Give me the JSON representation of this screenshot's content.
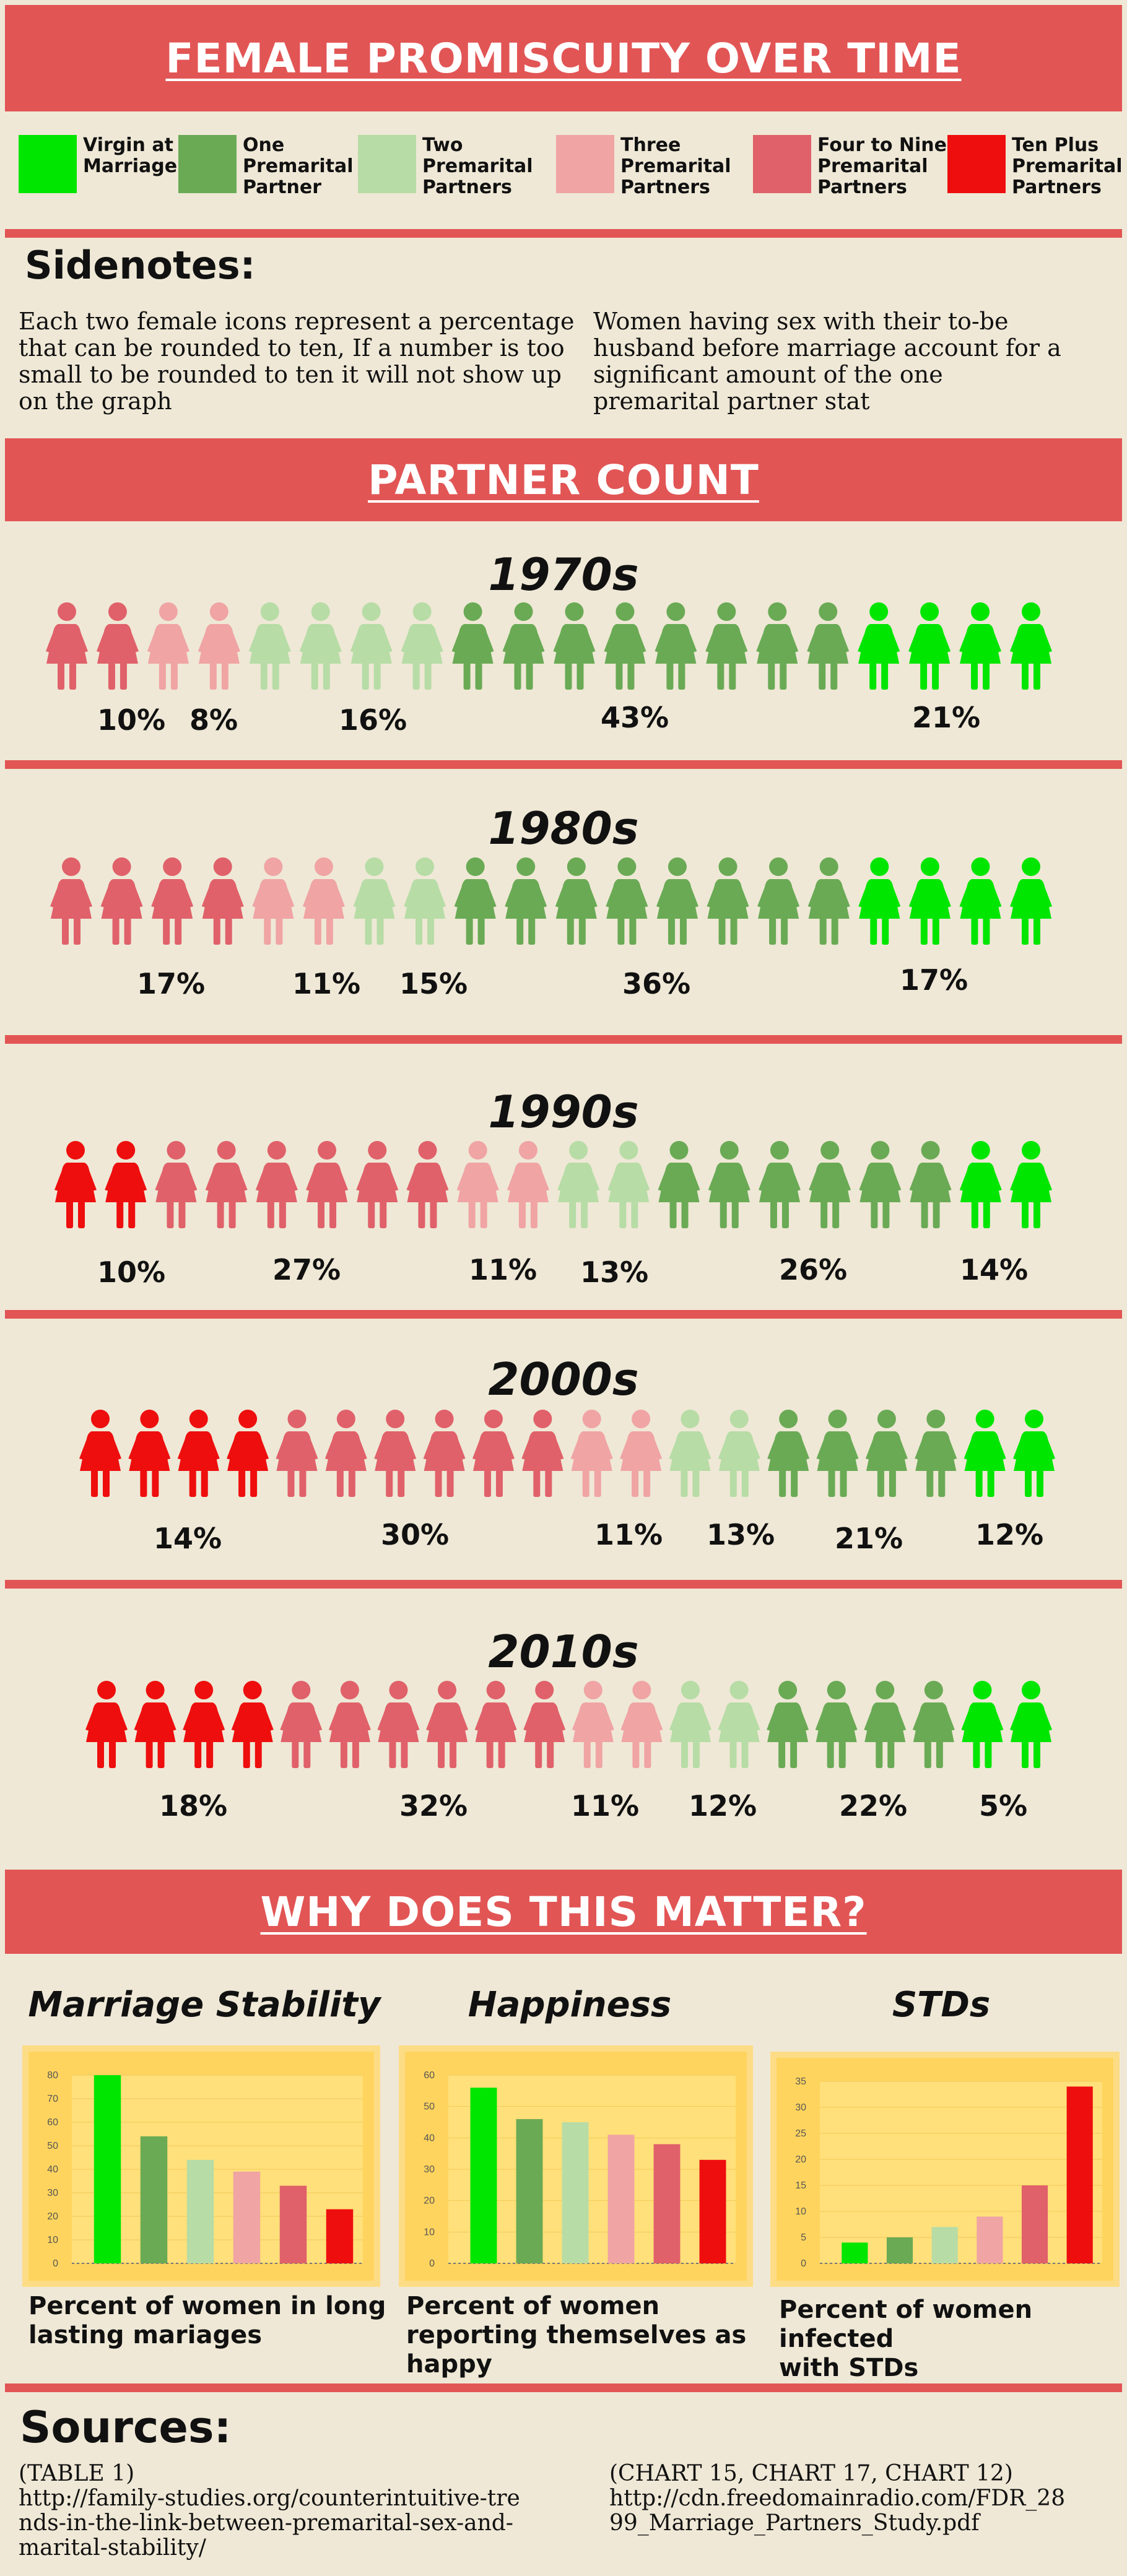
{
  "title": "FEMALE PROMISCUITY OVER TIME",
  "colors": {
    "virgin": "#00e600",
    "one": "#6aaa55",
    "two": "#b7dca6",
    "three": "#f0a4a4",
    "four_nine": "#e0616a",
    "ten_plus": "#ee0e0e",
    "banner": "#e25555",
    "background": "#efe8d6",
    "chart_box": "#ffd45e"
  },
  "legend": [
    {
      "key": "virgin",
      "label": "Virgin at\nMarriage"
    },
    {
      "key": "one",
      "label": "One\nPremarital\nPartner"
    },
    {
      "key": "two",
      "label": "Two\nPremarital\nPartners"
    },
    {
      "key": "three",
      "label": "Three\nPremarital\nPartners"
    },
    {
      "key": "four_nine",
      "label": "Four to Nine\nPremarital\nPartners"
    },
    {
      "key": "ten_plus",
      "label": "Ten Plus\nPremarital\nPartners"
    }
  ],
  "sidenotes": {
    "title": "Sidenotes:",
    "left": "Each two female icons represent a percentage that can be rounded to ten, If a number is too small to be rounded to ten it will not show up on the graph",
    "right": "Women having sex with their to-be husband before marriage account for a significant amount of the one premarital partner stat"
  },
  "partner_count_title": "PARTNER COUNT",
  "why_title": "WHY DOES THIS MATTER?",
  "decades": [
    {
      "label": "1970s",
      "icons": [
        "four_nine",
        "four_nine",
        "three",
        "three",
        "two",
        "two",
        "two",
        "two",
        "one",
        "one",
        "one",
        "one",
        "one",
        "one",
        "one",
        "one",
        "virgin",
        "virgin",
        "virgin",
        "virgin"
      ],
      "percents": [
        "10%",
        "8%",
        "16%",
        "43%",
        "21%"
      ]
    },
    {
      "label": "1980s",
      "icons": [
        "four_nine",
        "four_nine",
        "four_nine",
        "four_nine",
        "three",
        "three",
        "two",
        "two",
        "one",
        "one",
        "one",
        "one",
        "one",
        "one",
        "one",
        "one",
        "virgin",
        "virgin",
        "virgin",
        "virgin"
      ],
      "percents": [
        "17%",
        "11%",
        "15%",
        "36%",
        "17%"
      ]
    },
    {
      "label": "1990s",
      "icons": [
        "ten_plus",
        "ten_plus",
        "four_nine",
        "four_nine",
        "four_nine",
        "four_nine",
        "four_nine",
        "four_nine",
        "three",
        "three",
        "two",
        "two",
        "one",
        "one",
        "one",
        "one",
        "one",
        "one",
        "virgin",
        "virgin"
      ],
      "percents": [
        "10%",
        "27%",
        "11%",
        "13%",
        "26%",
        "14%"
      ]
    },
    {
      "label": "2000s",
      "icons": [
        "ten_plus",
        "ten_plus",
        "ten_plus",
        "ten_plus",
        "four_nine",
        "four_nine",
        "four_nine",
        "four_nine",
        "four_nine",
        "four_nine",
        "three",
        "three",
        "two",
        "two",
        "one",
        "one",
        "one",
        "one",
        "virgin",
        "virgin"
      ],
      "percents": [
        "14%",
        "30%",
        "11%",
        "13%",
        "21%",
        "12%"
      ]
    },
    {
      "label": "2010s",
      "icons": [
        "ten_plus",
        "ten_plus",
        "ten_plus",
        "ten_plus",
        "four_nine",
        "four_nine",
        "four_nine",
        "four_nine",
        "four_nine",
        "four_nine",
        "three",
        "three",
        "two",
        "two",
        "one",
        "one",
        "one",
        "one",
        "virgin",
        "virgin"
      ],
      "percents": [
        "18%",
        "32%",
        "11%",
        "12%",
        "22%",
        "5%"
      ]
    }
  ],
  "chart_data": [
    {
      "type": "bar",
      "title": "Marriage Stability",
      "caption": "Percent of women in long\nlasting mariages",
      "categories": [
        "Virgin at Marriage",
        "One Premarital Partner",
        "Two Premarital Partners",
        "Three Premarital Partners",
        "Four to Nine Premarital Partners",
        "Ten Plus Premarital Partners"
      ],
      "values": [
        80,
        54,
        44,
        39,
        33,
        23
      ],
      "ylim": [
        0,
        80
      ],
      "yticks": [
        "0",
        "10",
        "20",
        "30",
        "40",
        "50",
        "60",
        "70",
        "80"
      ],
      "grid": true
    },
    {
      "type": "bar",
      "title": "Happiness",
      "caption": "Percent of women\nreporting themselves as\nhappy",
      "categories": [
        "Virgin at Marriage",
        "One Premarital Partner",
        "Two Premarital Partners",
        "Three Premarital Partners",
        "Four to Nine Premarital Partners",
        "Ten Plus Premarital Partners"
      ],
      "values": [
        56,
        46,
        45,
        41,
        38,
        33
      ],
      "ylim": [
        0,
        60
      ],
      "yticks": [
        "0",
        "10",
        "20",
        "30",
        "40",
        "50",
        "60"
      ],
      "grid": true
    },
    {
      "type": "bar",
      "title": "STDs",
      "caption": "Percent of women infected\nwith STDs",
      "categories": [
        "Virgin at Marriage",
        "One Premarital Partner",
        "Two Premarital Partners",
        "Three Premarital Partners",
        "Four to Nine Premarital Partners",
        "Ten Plus Premarital Partners"
      ],
      "values": [
        4,
        5,
        7,
        9,
        15,
        34
      ],
      "ylim": [
        0,
        35
      ],
      "yticks": [
        "0",
        "5",
        "10",
        "15",
        "20",
        "25",
        "30",
        "35"
      ],
      "grid": true
    }
  ],
  "sources": {
    "title": "Sources:",
    "left": "(TABLE 1)\nhttp://family-studies.org/counterintuitive-tre\nnds-in-the-link-between-premarital-sex-and-\nmarital-stability/",
    "right": "(CHART 15, CHART 17, CHART 12)\nhttp://cdn.freedomainradio.com/FDR_28\n99_Marriage_Partners_Study.pdf"
  }
}
